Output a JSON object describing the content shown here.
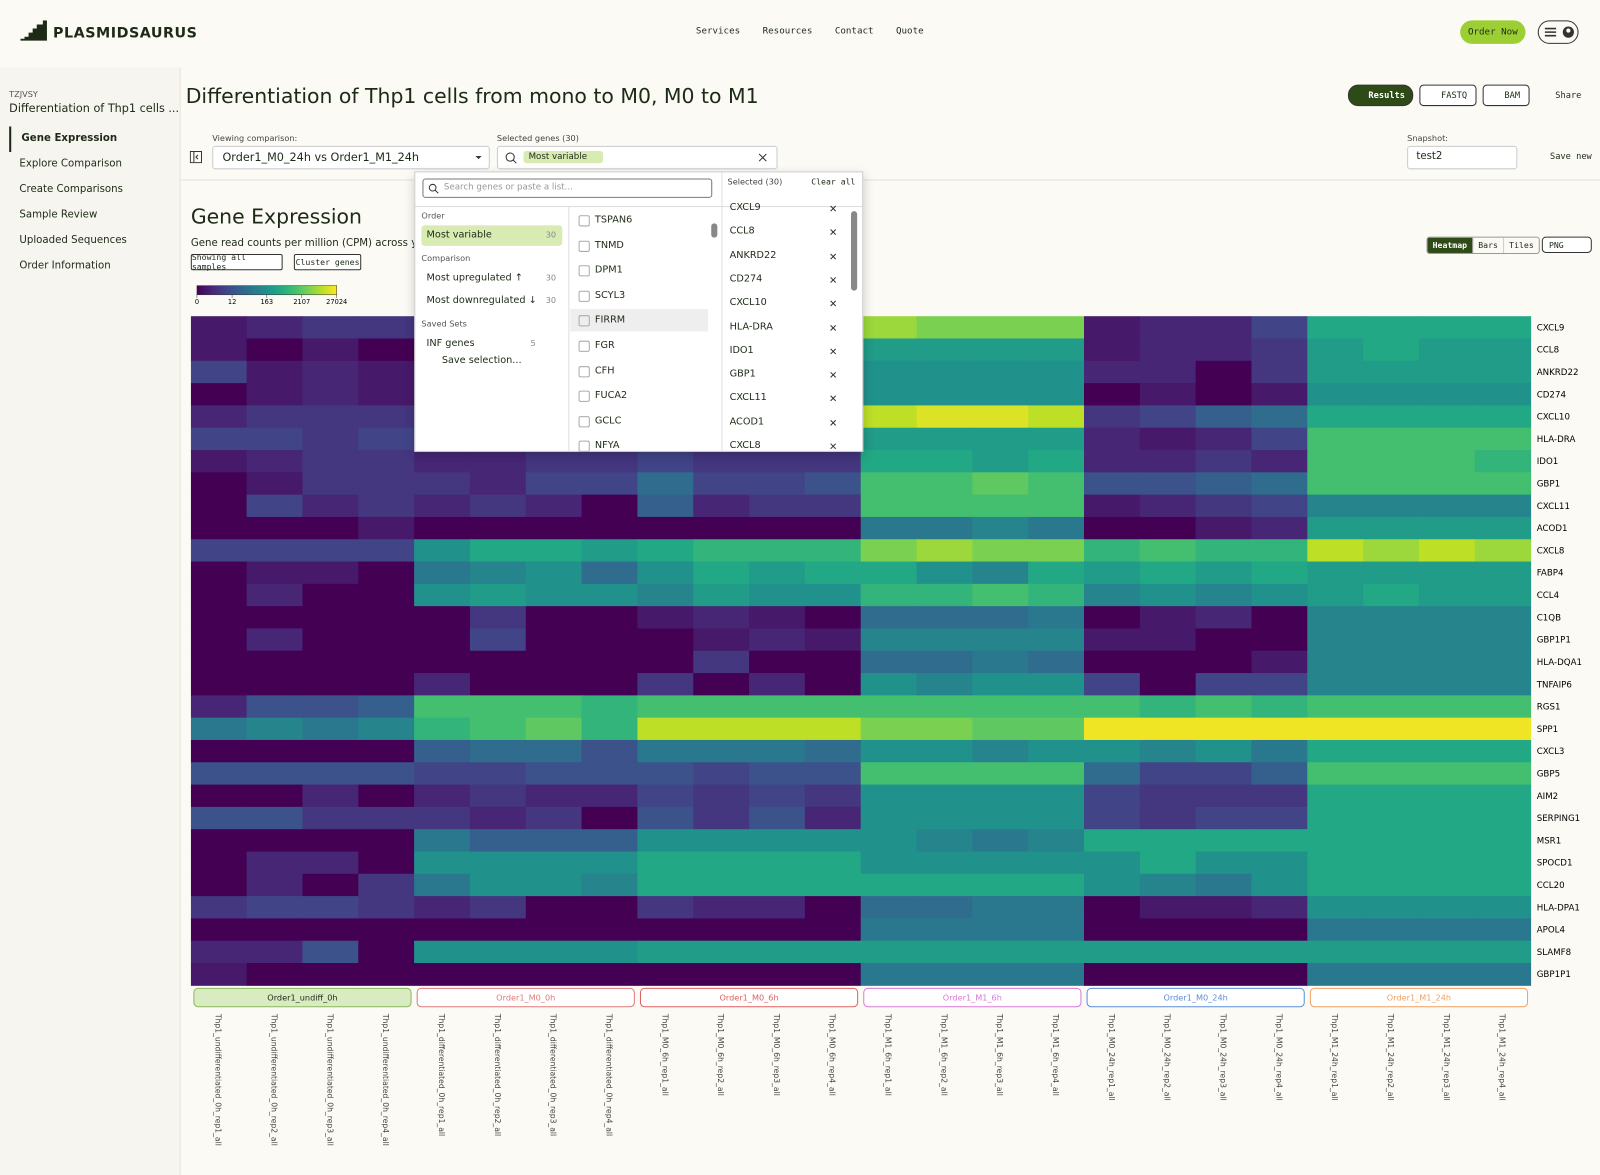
{
  "header": {
    "logo": "PLASMIDSAURUS",
    "nav": [
      "Services",
      "Resources",
      "Contact",
      "Quote"
    ],
    "order_button": "Order Now"
  },
  "sidebar": {
    "order_id": "TZJVSY",
    "project": "Differentiation of Thp1 cells ...",
    "menu": [
      "Gene Expression",
      "Explore Comparison",
      "Create Comparisons",
      "Sample Review",
      "Uploaded Sequences",
      "Order Information"
    ]
  },
  "page": {
    "title": "Differentiation of Thp1 cells from mono to M0, M0 to M1",
    "buttons": [
      "Results",
      "FASTQ",
      "BAM",
      "Share"
    ]
  },
  "toolbar": {
    "viewing_label": "Viewing comparison:",
    "viewing_value": "Order1_M0_24h vs Order1_M1_24h",
    "selected_label": "Selected genes (30)",
    "chip": "Most variable",
    "snapshot_label": "Snapshot:",
    "snapshot_value": "test2",
    "save": "Save new"
  },
  "dropdown": {
    "search_placeholder": "Search genes or paste a list...",
    "sections": [
      {
        "heading": "Order",
        "items": [
          {
            "label": "Most variable",
            "count": 30
          }
        ]
      },
      {
        "heading": "Comparison",
        "items": [
          {
            "label": "Most upregulated ↑",
            "count": 30
          },
          {
            "label": "Most downregulated ↓",
            "count": 30
          }
        ]
      },
      {
        "heading": "Saved Sets",
        "items": [
          {
            "label": "INF genes",
            "count": 5
          }
        ]
      }
    ],
    "save_selection": "Save selection...",
    "genes": [
      "TSPAN6",
      "TNMD",
      "DPM1",
      "SCYL3",
      "FIRRM",
      "FGR",
      "CFH",
      "FUCA2",
      "GCLC",
      "NFYA"
    ],
    "selected_heading": "Selected (30)",
    "clear": "Clear all",
    "selected": [
      "CXCL9",
      "CCL8",
      "ANKRD22",
      "CD274",
      "CXCL10",
      "HLA-DRA",
      "IDO1",
      "GBP1",
      "CXCL11",
      "ACOD1",
      "CXCL8"
    ]
  },
  "section": {
    "title": "Gene Expression",
    "subtitle": "Gene read counts per million (CPM) across y",
    "buttons": [
      "Showing all samples",
      "Cluster genes"
    ],
    "views": [
      "Heatmap",
      "Bars",
      "Tiles"
    ],
    "export": "PNG"
  },
  "chart_data": {
    "type": "heatmap",
    "colormap": "viridis",
    "log_scale": true,
    "clim": [
      0,
      27024
    ],
    "cticks": [
      0,
      12,
      163,
      2107,
      27024
    ],
    "rows": [
      "CXCL9",
      "CCL8",
      "ANKRD22",
      "CD274",
      "CXCL10",
      "HLA-DRA",
      "IDO1",
      "GBP1",
      "CXCL11",
      "ACOD1",
      "CXCL8",
      "FABP4",
      "CCL4",
      "C1QB",
      "GBP1P1",
      "HLA-DQA1",
      "TNFAIP6",
      "RGS1",
      "SPP1",
      "CXCL3",
      "GBP5",
      "AIM2",
      "SERPING1",
      "MSR1",
      "SPOCD1",
      "CCL20",
      "HLA-DPA1",
      "APOL4",
      "SLAMF8",
      "GBP1P1"
    ],
    "groups": [
      {
        "name": "Order1_undiff_0h",
        "color": "#8bb85c",
        "samples": [
          "Thp1_undifferentiated_0h_rep1_all",
          "Thp1_undifferentiated_0h_rep2_all",
          "Thp1_undifferentiated_0h_rep3_all",
          "Thp1_undifferentiated_0h_rep4_all"
        ]
      },
      {
        "name": "Order1_M0_0h",
        "color": "#e07a7a",
        "samples": [
          "Thp1_differentiated_0h_rep1_all",
          "Thp1_differentiated_0h_rep2_all",
          "Thp1_differentiated_0h_rep3_all",
          "Thp1_differentiated_0h_rep4_all"
        ]
      },
      {
        "name": "Order1_M0_6h",
        "color": "#e06060",
        "samples": [
          "Thp1_M0_6h_rep1_all",
          "Thp1_M0_6h_rep2_all",
          "Thp1_M0_6h_rep3_all",
          "Thp1_M0_6h_rep4_all"
        ]
      },
      {
        "name": "Order1_M1_6h",
        "color": "#d77ad7",
        "samples": [
          "Thp1_M1_6h_rep1_all",
          "Thp1_M1_6h_rep2_all",
          "Thp1_M1_6h_rep3_all",
          "Thp1_M1_6h_rep4_all"
        ]
      },
      {
        "name": "Order1_M0_24h",
        "color": "#5b8fd8",
        "samples": [
          "Thp1_M0_24h_rep1_all",
          "Thp1_M0_24h_rep2_all",
          "Thp1_M0_24h_rep3_all",
          "Thp1_M0_24h_rep4_all"
        ]
      },
      {
        "name": "Order1_M1_24h",
        "color": "#f0a060",
        "samples": [
          "Thp1_M1_24h_rep1_all",
          "Thp1_M1_24h_rep2_all",
          "Thp1_M1_24h_rep3_all",
          "Thp1_M1_24h_rep4_all"
        ]
      }
    ],
    "values": [
      [
        1,
        2,
        4,
        4,
        null,
        null,
        null,
        null,
        null,
        null,
        null,
        null,
        5900,
        3500,
        3500,
        3500,
        1,
        2,
        2,
        7,
        455,
        455,
        455,
        455
      ],
      [
        1,
        0,
        1,
        0,
        null,
        null,
        null,
        null,
        null,
        null,
        null,
        null,
        270,
        270,
        270,
        270,
        1,
        2,
        2,
        4,
        270,
        455,
        270,
        270
      ],
      [
        7,
        1,
        2,
        1,
        null,
        null,
        null,
        null,
        null,
        null,
        null,
        null,
        163,
        163,
        163,
        163,
        2,
        2,
        0,
        4,
        270,
        270,
        270,
        270
      ],
      [
        0,
        1,
        2,
        1,
        null,
        null,
        null,
        null,
        null,
        null,
        null,
        null,
        163,
        163,
        163,
        163,
        0,
        1,
        0,
        1,
        163,
        163,
        163,
        163
      ],
      [
        2,
        4,
        4,
        4,
        null,
        null,
        null,
        null,
        null,
        null,
        null,
        null,
        9700,
        16000,
        16000,
        9700,
        4,
        7,
        20,
        35,
        455,
        455,
        455,
        455
      ],
      [
        7,
        7,
        4,
        7,
        null,
        null,
        null,
        null,
        null,
        null,
        null,
        null,
        270,
        270,
        270,
        270,
        2,
        1,
        2,
        7,
        1260,
        1260,
        1260,
        1260
      ],
      [
        1,
        2,
        4,
        4,
        2,
        2,
        4,
        4,
        7,
        4,
        4,
        4,
        455,
        455,
        270,
        455,
        2,
        2,
        4,
        2,
        1260,
        1260,
        1260,
        760
      ],
      [
        0,
        1,
        4,
        4,
        4,
        2,
        7,
        7,
        35,
        7,
        7,
        12,
        1260,
        1260,
        2100,
        1260,
        12,
        12,
        20,
        35,
        1260,
        1260,
        1260,
        1260
      ],
      [
        0,
        7,
        2,
        4,
        2,
        4,
        2,
        0,
        20,
        2,
        4,
        4,
        1260,
        1260,
        1260,
        1260,
        1,
        2,
        4,
        7,
        97,
        97,
        97,
        97
      ],
      [
        0,
        0,
        0,
        1,
        0,
        0,
        0,
        0,
        0,
        0,
        0,
        0,
        58,
        58,
        97,
        58,
        0,
        0,
        1,
        2,
        270,
        270,
        270,
        270
      ],
      [
        7,
        7,
        7,
        7,
        163,
        455,
        455,
        270,
        455,
        760,
        760,
        760,
        3500,
        5900,
        3500,
        3500,
        760,
        1260,
        760,
        760,
        9700,
        5900,
        9700,
        5900
      ],
      [
        0,
        1,
        1,
        0,
        58,
        97,
        163,
        35,
        163,
        455,
        270,
        455,
        455,
        163,
        97,
        455,
        270,
        455,
        270,
        455,
        270,
        270,
        270,
        270
      ],
      [
        0,
        2,
        0,
        0,
        163,
        270,
        163,
        163,
        97,
        270,
        163,
        163,
        760,
        760,
        1260,
        760,
        97,
        163,
        97,
        163,
        270,
        455,
        270,
        270
      ],
      [
        0,
        0,
        0,
        0,
        0,
        4,
        0,
        0,
        1,
        2,
        1,
        0,
        35,
        35,
        35,
        58,
        0,
        1,
        2,
        0,
        97,
        97,
        97,
        97
      ],
      [
        0,
        2,
        0,
        0,
        0,
        7,
        0,
        0,
        0,
        1,
        2,
        1,
        97,
        97,
        97,
        97,
        1,
        1,
        0,
        0,
        97,
        97,
        97,
        97
      ],
      [
        0,
        0,
        0,
        0,
        0,
        0,
        0,
        0,
        0,
        4,
        0,
        0,
        35,
        35,
        58,
        35,
        0,
        0,
        0,
        1,
        97,
        97,
        97,
        97
      ],
      [
        0,
        0,
        0,
        0,
        2,
        0,
        0,
        0,
        4,
        0,
        2,
        0,
        163,
        97,
        163,
        163,
        7,
        0,
        7,
        7,
        97,
        97,
        97,
        97
      ],
      [
        2,
        12,
        12,
        20,
        1260,
        1260,
        1260,
        760,
        1260,
        1260,
        1260,
        1260,
        1260,
        1260,
        1260,
        1260,
        1260,
        760,
        1260,
        760,
        1260,
        1260,
        1260,
        1260
      ],
      [
        58,
        97,
        58,
        97,
        760,
        1260,
        2100,
        760,
        9700,
        9700,
        9700,
        9700,
        3500,
        3500,
        2100,
        2100,
        22000,
        22000,
        22000,
        22000,
        22000,
        22000,
        22000,
        22000
      ],
      [
        0,
        0,
        0,
        0,
        20,
        35,
        35,
        12,
        58,
        58,
        58,
        35,
        163,
        163,
        97,
        163,
        163,
        97,
        163,
        58,
        455,
        455,
        455,
        455
      ],
      [
        12,
        12,
        12,
        12,
        7,
        7,
        12,
        12,
        12,
        7,
        12,
        12,
        1260,
        1260,
        1260,
        1260,
        35,
        7,
        7,
        20,
        1260,
        1260,
        1260,
        1260
      ],
      [
        0,
        0,
        2,
        0,
        2,
        4,
        2,
        2,
        7,
        4,
        7,
        4,
        163,
        163,
        163,
        163,
        7,
        4,
        4,
        4,
        455,
        455,
        455,
        455
      ],
      [
        12,
        12,
        4,
        4,
        4,
        2,
        4,
        0,
        12,
        4,
        12,
        2,
        163,
        163,
        163,
        163,
        7,
        4,
        7,
        7,
        455,
        455,
        455,
        455
      ],
      [
        0,
        0,
        0,
        0,
        58,
        20,
        20,
        20,
        163,
        163,
        163,
        163,
        163,
        97,
        58,
        97,
        455,
        455,
        455,
        455,
        455,
        455,
        455,
        455
      ],
      [
        0,
        2,
        2,
        0,
        163,
        163,
        163,
        163,
        455,
        455,
        455,
        455,
        163,
        163,
        163,
        163,
        163,
        455,
        163,
        163,
        455,
        455,
        455,
        455
      ],
      [
        0,
        2,
        0,
        4,
        58,
        163,
        163,
        97,
        455,
        455,
        455,
        455,
        455,
        455,
        455,
        455,
        163,
        97,
        58,
        163,
        455,
        455,
        455,
        455
      ],
      [
        4,
        7,
        7,
        4,
        2,
        4,
        0,
        0,
        4,
        2,
        2,
        0,
        35,
        35,
        58,
        58,
        0,
        1,
        1,
        2,
        163,
        163,
        163,
        163
      ],
      [
        0,
        0,
        0,
        0,
        0,
        0,
        0,
        0,
        0,
        0,
        0,
        0,
        58,
        58,
        58,
        58,
        0,
        0,
        0,
        0,
        58,
        58,
        58,
        58
      ],
      [
        2,
        2,
        12,
        0,
        163,
        163,
        163,
        163,
        270,
        270,
        270,
        270,
        270,
        270,
        270,
        270,
        270,
        270,
        270,
        270,
        270,
        270,
        270,
        270
      ],
      [
        1,
        0,
        0,
        0,
        0,
        0,
        0,
        0,
        0,
        0,
        0,
        0,
        58,
        58,
        58,
        58,
        0,
        0,
        0,
        0,
        58,
        58,
        58,
        58
      ]
    ]
  }
}
